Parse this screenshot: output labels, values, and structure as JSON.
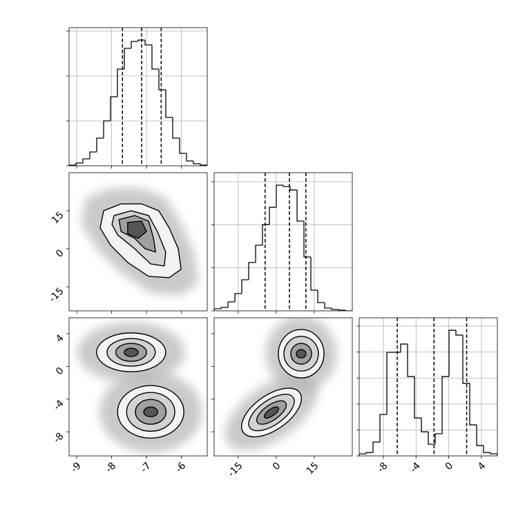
{
  "chart_data": [
    {
      "type": "histogram",
      "bins": [
        -9.22,
        -9.022,
        -8.824,
        -8.626,
        -8.428,
        -8.23,
        -8.032,
        -7.834,
        -7.636,
        -7.438,
        -7.24,
        -7.042,
        -6.844,
        -6.646,
        -6.448,
        -6.25,
        -6.052,
        -5.854,
        -5.656,
        -5.458,
        -5.26
      ],
      "values": [
        15,
        62,
        154,
        308,
        615,
        1000,
        1538,
        2154,
        2615,
        2769,
        2800,
        2692,
        2154,
        1692,
        1077,
        615,
        277,
        108,
        46,
        15
      ],
      "quantiles": [
        -7.69,
        -7.14,
        -6.58
      ],
      "xlim": [
        -9.22,
        -5.26
      ],
      "ylim": [
        0,
        3077
      ],
      "xticks": [
        -9,
        -8,
        -7,
        -6
      ],
      "yticks": [
        0,
        1000,
        2000,
        3000
      ],
      "show_xtick_labels": false,
      "show_ytick_labels": false,
      "grid": true,
      "color": "#000000"
    },
    {
      "type": "contour",
      "contours": [
        {
          "x": [
            -8.23,
            -7.73,
            -7.14,
            -6.65,
            -6.35,
            -6.09,
            -6.01,
            -6.35,
            -6.94,
            -7.54,
            -8.03,
            -8.33
          ],
          "y": [
            15.0,
            17.7,
            17.7,
            15.0,
            8.2,
            0.0,
            -8.1,
            -11.4,
            -10.9,
            -5.4,
            1.4,
            8.2
          ]
        },
        {
          "x": [
            -7.93,
            -7.44,
            -6.94,
            -6.69,
            -6.45,
            -6.49,
            -6.88,
            -7.34,
            -7.83,
            -7.99
          ],
          "y": [
            13.1,
            15.0,
            13.1,
            6.8,
            -1.3,
            -6.8,
            -6.0,
            0.0,
            5.5,
            9.6
          ]
        },
        {
          "x": [
            -7.79,
            -7.34,
            -6.94,
            -6.8,
            -6.74,
            -7.04,
            -7.34,
            -7.73
          ],
          "y": [
            11.5,
            13.1,
            10.9,
            4.1,
            -1.3,
            0.0,
            4.1,
            6.8
          ]
        },
        {
          "x": [
            -7.54,
            -7.14,
            -7.0,
            -7.24,
            -7.54
          ],
          "y": [
            10.4,
            10.9,
            6.8,
            4.1,
            6.0
          ]
        }
      ],
      "xlim": [
        -9.22,
        -5.26
      ],
      "ylim": [
        -24.5,
        30
      ],
      "xticks": [
        -9,
        -8,
        -7,
        -6
      ],
      "yticks": [
        -15,
        0,
        15
      ],
      "show_xtick_labels": false,
      "show_ytick_labels": true
    },
    {
      "type": "histogram",
      "bins": [
        -24.5,
        -21.775,
        -19.05,
        -16.325,
        -13.6,
        -10.875,
        -8.15,
        -5.425,
        -2.7,
        0.025,
        2.75,
        5.475,
        8.2,
        10.925,
        13.65,
        16.375,
        19.1,
        21.825,
        24.55,
        27.275,
        30
      ],
      "values": [
        48,
        80,
        209,
        401,
        722,
        1123,
        1524,
        2005,
        2406,
        2920,
        2888,
        2807,
        2086,
        1251,
        481,
        193,
        64,
        32,
        16,
        0
      ],
      "quantiles": [
        -4.4,
        5.2,
        11.7
      ],
      "xlim": [
        -24.5,
        30
      ],
      "ylim": [
        0,
        3209
      ],
      "xticks": [
        -15,
        0,
        15
      ],
      "yticks": [
        0,
        1000,
        2000,
        3000
      ],
      "show_xtick_labels": false,
      "show_ytick_labels": false,
      "grid": true,
      "color": "#000000"
    },
    {
      "type": "contour",
      "blobs": [
        {
          "cx": -7.44,
          "cy": 1.72,
          "rx": [
            0.99,
            0.69,
            0.44,
            0.2
          ],
          "ry": [
            2.37,
            1.69,
            1.1,
            0.51
          ],
          "angle": 0
        },
        {
          "cx": -6.88,
          "cy": -5.56,
          "rx": [
            0.95,
            0.69,
            0.44,
            0.2
          ],
          "ry": [
            3.21,
            2.37,
            1.52,
            0.59
          ],
          "angle": 0
        }
      ],
      "xlim": [
        -9.22,
        -5.26
      ],
      "ylim": [
        -10.95,
        5.95
      ],
      "xticks": [
        -9,
        -8,
        -7,
        -6
      ],
      "yticks": [
        -8,
        -4,
        0,
        4
      ],
      "show_xtick_labels": true,
      "show_ytick_labels": true
    },
    {
      "type": "contour",
      "blobs": [
        {
          "cx": 9.83,
          "cy": 1.55,
          "rx": [
            9.0,
            6.8,
            4.1,
            1.9
          ],
          "ry": [
            2.96,
            2.12,
            1.27,
            0.51
          ],
          "angle": 0
        },
        {
          "cx": -1.88,
          "cy": -5.64,
          "rx": [
            13.6,
            10.4,
            6.8,
            3.3
          ],
          "ry": [
            2.12,
            1.52,
            0.93,
            0.42
          ],
          "angle": -35
        }
      ],
      "xlim": [
        -24.5,
        30
      ],
      "ylim": [
        -10.95,
        5.95
      ],
      "xticks": [
        -15,
        0,
        15
      ],
      "yticks": [
        -8,
        -4,
        0,
        4
      ],
      "show_xtick_labels": true,
      "show_ytick_labels": false
    },
    {
      "type": "histogram",
      "bins": [
        -10.96,
        -10.114,
        -9.268,
        -8.422,
        -7.576,
        -6.73,
        -5.884,
        -5.038,
        -4.192,
        -3.346,
        -2.5,
        -1.654,
        -0.808,
        0.038,
        0.884,
        1.73,
        2.576,
        3.422,
        4.268,
        5.114,
        5.96
      ],
      "values": [
        40,
        66,
        266,
        798,
        1995,
        1995,
        2154,
        1529,
        731,
        465,
        226,
        426,
        1529,
        2420,
        2327,
        1396,
        598,
        200,
        66,
        40
      ],
      "quantiles": [
        -6.3,
        -1.8,
        2.2
      ],
      "xlim": [
        -10.96,
        5.96
      ],
      "ylim": [
        0,
        2660
      ],
      "xticks": [
        -8,
        -4,
        0,
        4
      ],
      "yticks": [
        0,
        500,
        1000,
        1500,
        2000,
        2500
      ],
      "show_xtick_labels": true,
      "show_ytick_labels": false,
      "grid": true,
      "color": "#000000"
    }
  ]
}
